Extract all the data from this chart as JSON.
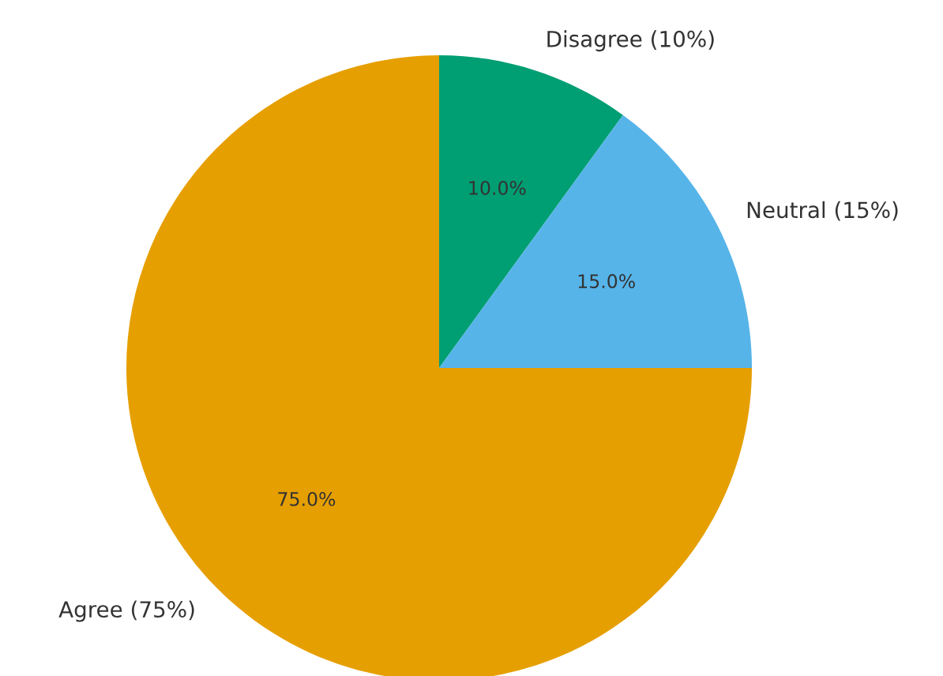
{
  "chart_data": {
    "type": "pie",
    "categories": [
      "Disagree (10%)",
      "Neutral (15%)",
      "Agree (75%)"
    ],
    "values": [
      10,
      15,
      75
    ],
    "colors": [
      "#009e73",
      "#56b4e9",
      "#e69f00"
    ],
    "value_labels": [
      "10.0%",
      "15.0%",
      "75.0%"
    ],
    "legend": false
  }
}
